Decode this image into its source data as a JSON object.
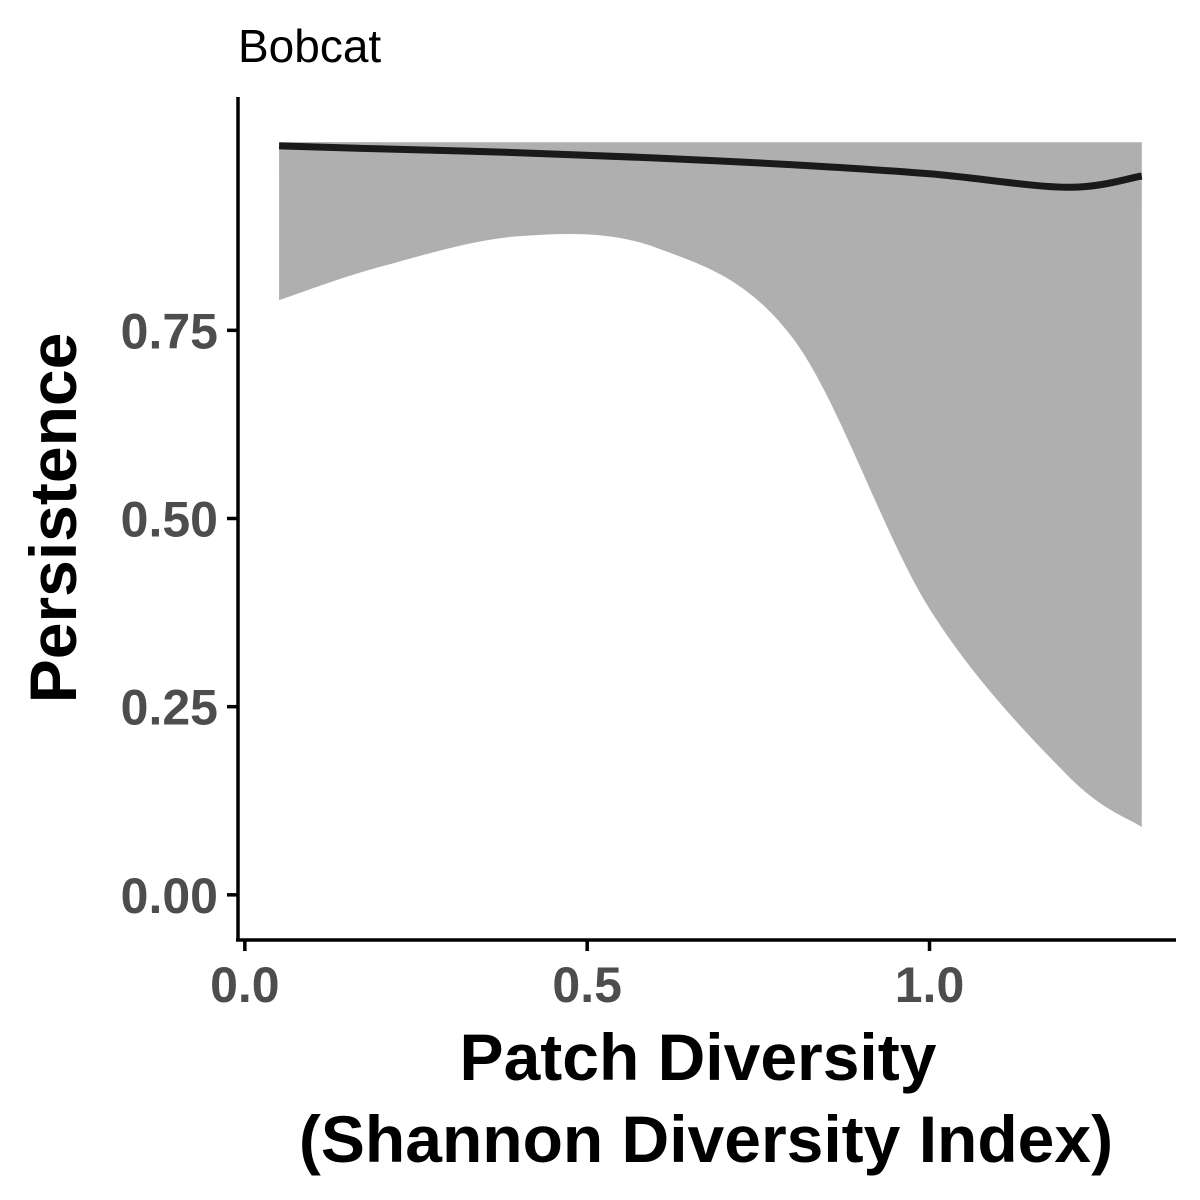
{
  "chart_data": {
    "type": "line",
    "title": "Bobcat",
    "xlabel_line1": "Patch Diversity",
    "xlabel_line2": "(Shannon Diversity Index)",
    "ylabel": "Persistence",
    "xlim": [
      -0.01,
      1.36
    ],
    "ylim": [
      -0.06,
      1.06
    ],
    "x_ticks": [
      0.0,
      0.5,
      1.0
    ],
    "x_tick_labels": [
      "0.0",
      "0.5",
      "1.0"
    ],
    "y_ticks": [
      0.0,
      0.25,
      0.5,
      0.75
    ],
    "y_tick_labels": [
      "0.00",
      "0.25",
      "0.50",
      "0.75"
    ],
    "grid": false,
    "legend": "none",
    "colors": {
      "ribbon": "#afafaf",
      "line": "#1a1a1a",
      "tick_text": "#4d4d4d"
    },
    "series": [
      {
        "x": [
          0.05,
          0.2,
          0.4,
          0.6,
          0.8,
          1.0,
          1.2,
          1.31
        ],
        "y": [
          0.995,
          0.991,
          0.986,
          0.979,
          0.97,
          0.958,
          0.94,
          0.955
        ],
        "lower": [
          0.79,
          0.835,
          0.875,
          0.86,
          0.74,
          0.38,
          0.16,
          0.09
        ],
        "upper": [
          1.0,
          1.0,
          1.0,
          1.0,
          1.0,
          1.0,
          1.0,
          1.0
        ]
      }
    ]
  }
}
